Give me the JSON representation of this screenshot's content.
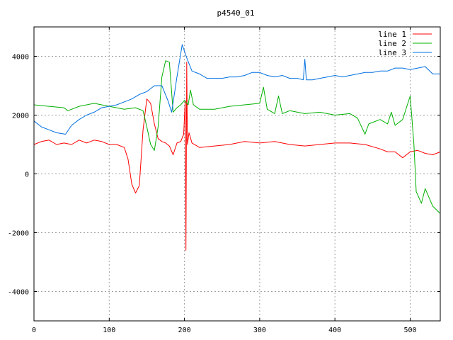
{
  "chart_data": {
    "type": "line",
    "title": "p4540_01",
    "xlabel": "",
    "ylabel": "",
    "xlim": [
      0,
      540
    ],
    "ylim": [
      -5000,
      5000
    ],
    "x_ticks": [
      0,
      100,
      200,
      300,
      400,
      500
    ],
    "y_ticks": [
      -4000,
      -2000,
      0,
      2000,
      4000
    ],
    "grid": true,
    "legend_position": "top-right",
    "series": [
      {
        "name": "line 1",
        "color": "#ff0000",
        "points": [
          [
            0,
            1000
          ],
          [
            10,
            1100
          ],
          [
            20,
            1150
          ],
          [
            30,
            1000
          ],
          [
            40,
            1050
          ],
          [
            50,
            1000
          ],
          [
            60,
            1150
          ],
          [
            70,
            1050
          ],
          [
            80,
            1150
          ],
          [
            90,
            1100
          ],
          [
            100,
            1000
          ],
          [
            110,
            1000
          ],
          [
            120,
            900
          ],
          [
            125,
            500
          ],
          [
            130,
            -350
          ],
          [
            135,
            -650
          ],
          [
            140,
            -400
          ],
          [
            145,
            1500
          ],
          [
            150,
            2550
          ],
          [
            155,
            2400
          ],
          [
            160,
            1700
          ],
          [
            165,
            1200
          ],
          [
            170,
            1100
          ],
          [
            175,
            1050
          ],
          [
            180,
            950
          ],
          [
            185,
            650
          ],
          [
            190,
            1050
          ],
          [
            195,
            1100
          ],
          [
            199,
            1350
          ],
          [
            201,
            2500
          ],
          [
            202,
            -2600
          ],
          [
            203,
            3800
          ],
          [
            204,
            1000
          ],
          [
            206,
            1400
          ],
          [
            210,
            1050
          ],
          [
            220,
            900
          ],
          [
            240,
            950
          ],
          [
            260,
            1000
          ],
          [
            280,
            1100
          ],
          [
            300,
            1050
          ],
          [
            320,
            1100
          ],
          [
            340,
            1000
          ],
          [
            360,
            950
          ],
          [
            380,
            1000
          ],
          [
            400,
            1050
          ],
          [
            420,
            1050
          ],
          [
            440,
            1000
          ],
          [
            460,
            850
          ],
          [
            470,
            750
          ],
          [
            480,
            750
          ],
          [
            490,
            550
          ],
          [
            500,
            750
          ],
          [
            510,
            800
          ],
          [
            520,
            700
          ],
          [
            530,
            650
          ],
          [
            540,
            750
          ]
        ]
      },
      {
        "name": "line 2",
        "color": "#00b000",
        "points": [
          [
            0,
            2350
          ],
          [
            20,
            2300
          ],
          [
            40,
            2250
          ],
          [
            45,
            2150
          ],
          [
            60,
            2300
          ],
          [
            80,
            2400
          ],
          [
            100,
            2300
          ],
          [
            120,
            2200
          ],
          [
            135,
            2250
          ],
          [
            145,
            2150
          ],
          [
            150,
            1600
          ],
          [
            155,
            1000
          ],
          [
            160,
            800
          ],
          [
            165,
            1600
          ],
          [
            170,
            3300
          ],
          [
            175,
            3850
          ],
          [
            180,
            3800
          ],
          [
            185,
            2100
          ],
          [
            190,
            2250
          ],
          [
            195,
            2350
          ],
          [
            200,
            2500
          ],
          [
            205,
            2350
          ],
          [
            208,
            2850
          ],
          [
            212,
            2350
          ],
          [
            220,
            2200
          ],
          [
            240,
            2200
          ],
          [
            260,
            2300
          ],
          [
            280,
            2350
          ],
          [
            300,
            2400
          ],
          [
            305,
            2950
          ],
          [
            310,
            2200
          ],
          [
            320,
            2050
          ],
          [
            325,
            2650
          ],
          [
            330,
            2050
          ],
          [
            340,
            2150
          ],
          [
            360,
            2050
          ],
          [
            380,
            2100
          ],
          [
            400,
            2000
          ],
          [
            420,
            2050
          ],
          [
            430,
            1900
          ],
          [
            440,
            1350
          ],
          [
            445,
            1700
          ],
          [
            450,
            1750
          ],
          [
            460,
            1850
          ],
          [
            470,
            1700
          ],
          [
            475,
            2100
          ],
          [
            480,
            1650
          ],
          [
            490,
            1850
          ],
          [
            495,
            2250
          ],
          [
            500,
            2650
          ],
          [
            505,
            1000
          ],
          [
            508,
            -600
          ],
          [
            515,
            -1000
          ],
          [
            520,
            -500
          ],
          [
            530,
            -1100
          ],
          [
            540,
            -1350
          ]
        ]
      },
      {
        "name": "line 3",
        "color": "#0070e0",
        "points": [
          [
            0,
            1800
          ],
          [
            10,
            1600
          ],
          [
            20,
            1500
          ],
          [
            30,
            1400
          ],
          [
            42,
            1350
          ],
          [
            50,
            1650
          ],
          [
            60,
            1850
          ],
          [
            70,
            2000
          ],
          [
            80,
            2100
          ],
          [
            90,
            2250
          ],
          [
            100,
            2300
          ],
          [
            110,
            2350
          ],
          [
            120,
            2450
          ],
          [
            130,
            2550
          ],
          [
            140,
            2700
          ],
          [
            150,
            2800
          ],
          [
            160,
            3000
          ],
          [
            170,
            3000
          ],
          [
            178,
            2500
          ],
          [
            183,
            2100
          ],
          [
            190,
            3300
          ],
          [
            197,
            4400
          ],
          [
            203,
            3950
          ],
          [
            210,
            3500
          ],
          [
            220,
            3400
          ],
          [
            230,
            3250
          ],
          [
            240,
            3250
          ],
          [
            250,
            3250
          ],
          [
            260,
            3300
          ],
          [
            270,
            3300
          ],
          [
            280,
            3350
          ],
          [
            290,
            3450
          ],
          [
            300,
            3450
          ],
          [
            310,
            3350
          ],
          [
            320,
            3300
          ],
          [
            330,
            3350
          ],
          [
            340,
            3250
          ],
          [
            350,
            3250
          ],
          [
            358,
            3200
          ],
          [
            360,
            3900
          ],
          [
            362,
            3200
          ],
          [
            370,
            3200
          ],
          [
            380,
            3250
          ],
          [
            390,
            3300
          ],
          [
            400,
            3350
          ],
          [
            410,
            3300
          ],
          [
            420,
            3350
          ],
          [
            430,
            3400
          ],
          [
            440,
            3450
          ],
          [
            450,
            3450
          ],
          [
            460,
            3500
          ],
          [
            470,
            3500
          ],
          [
            480,
            3600
          ],
          [
            490,
            3600
          ],
          [
            500,
            3550
          ],
          [
            510,
            3600
          ],
          [
            520,
            3650
          ],
          [
            530,
            3400
          ],
          [
            540,
            3400
          ]
        ]
      }
    ]
  }
}
